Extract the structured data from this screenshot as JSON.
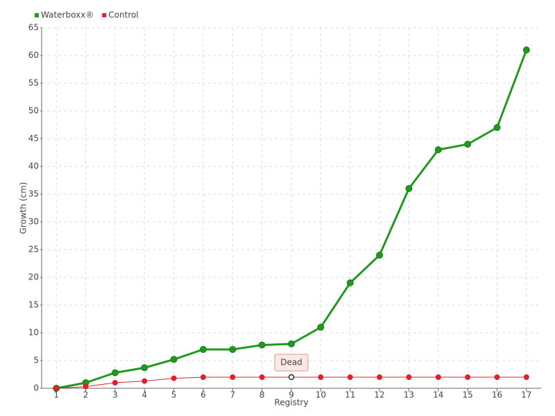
{
  "chart_data": {
    "type": "line",
    "xlabel": "Registry",
    "ylabel": "Growth (cm)",
    "categories": [
      "1",
      "2",
      "3",
      "4",
      "5",
      "6",
      "7",
      "8",
      "9",
      "10",
      "11",
      "12",
      "13",
      "14",
      "15",
      "16",
      "17"
    ],
    "series": [
      {
        "name": "Waterboxx®",
        "color": "#1f9a1f",
        "values": [
          0,
          1,
          2.8,
          3.7,
          5.2,
          7,
          7,
          7.8,
          8,
          11,
          19,
          24,
          36,
          43,
          44,
          47,
          61
        ]
      },
      {
        "name": "Control",
        "color": "#e0202a",
        "values": [
          0,
          0.3,
          1,
          1.3,
          1.8,
          2,
          2,
          2,
          2,
          2,
          2,
          2,
          2,
          2,
          2,
          2,
          2
        ]
      }
    ],
    "annotations": [
      {
        "text": "Dead",
        "x": "9",
        "series": "Control"
      }
    ],
    "ylim": [
      0,
      65
    ],
    "yticks": [
      0,
      5,
      10,
      15,
      20,
      25,
      30,
      35,
      40,
      45,
      50,
      55,
      60,
      65
    ],
    "grid": true,
    "legend": "top-left"
  }
}
